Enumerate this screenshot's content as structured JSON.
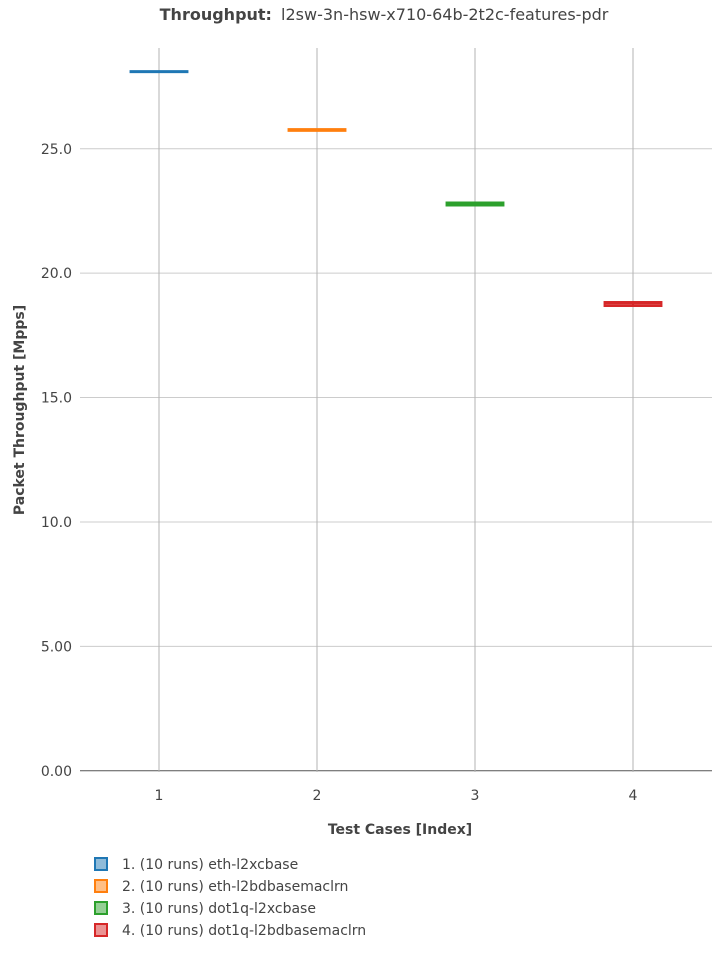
{
  "chart_data": {
    "type": "box",
    "title_bold": "Throughput:",
    "title_rest": "l2sw-3n-hsw-x710-64b-2t2c-features-pdr",
    "xlabel": "Test Cases [Index]",
    "ylabel": "Packet Throughput [Mpps]",
    "categories": [
      "1",
      "2",
      "3",
      "4"
    ],
    "yticks": [
      "0.00",
      "5.00",
      "10.0",
      "15.0",
      "20.0",
      "25.0"
    ],
    "ylim": [
      -0.05,
      29.05
    ],
    "series": [
      {
        "name": "1. (10 runs) eth-l2xcbase",
        "x": 1,
        "median": 28.1,
        "q1": 28.08,
        "q3": 28.12,
        "min": 28.07,
        "max": 28.13,
        "color": "#1f77b4"
      },
      {
        "name": "2. (10 runs) eth-l2bdbasemaclrn",
        "x": 2,
        "median": 25.75,
        "q1": 25.72,
        "q3": 25.79,
        "min": 25.7,
        "max": 25.8,
        "color": "#ff7f0e"
      },
      {
        "name": "3. (10 runs) dot1q-l2xcbase",
        "x": 3,
        "median": 22.78,
        "q1": 22.72,
        "q3": 22.84,
        "min": 22.7,
        "max": 22.86,
        "color": "#2ca02c"
      },
      {
        "name": "4. (10 runs) dot1q-l2bdbasemaclrn",
        "x": 4,
        "median": 18.77,
        "q1": 18.68,
        "q3": 18.84,
        "min": 18.66,
        "max": 18.88,
        "color": "#d62728"
      }
    ],
    "grid": true,
    "legend_position": "bottom"
  }
}
